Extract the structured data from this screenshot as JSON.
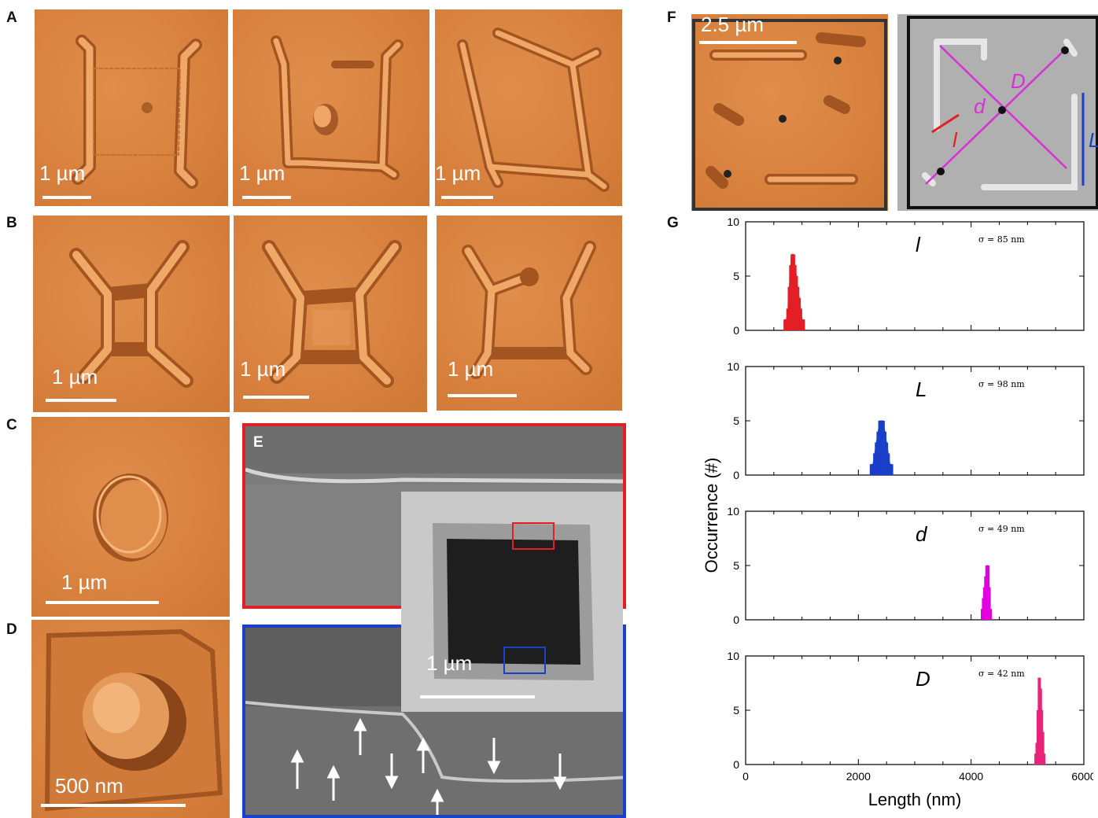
{
  "panels": {
    "a": "A",
    "b": "B",
    "c": "C",
    "d": "D",
    "e": "E",
    "f": "F",
    "g": "G"
  },
  "scalebars": {
    "a1": "1 µm",
    "a2": "1 µm",
    "a3": "1 µm",
    "b1": "1 µm",
    "b2": "1 µm",
    "b3": "1 µm",
    "c": "1 µm",
    "d": "500 nm",
    "e": "1 µm",
    "f": "2.5 µm"
  },
  "f_labels": {
    "d": "d",
    "D": "D",
    "l": "l",
    "L": "L"
  },
  "colors": {
    "afm": "#d9823f",
    "red": "#e31e24",
    "blue": "#1a3fc8",
    "magenta": "#d82fd8",
    "pink": "#e8247a"
  },
  "chart_data": {
    "type": "bar",
    "xlabel": "Length (nm)",
    "ylabel": "Occurrence (#)",
    "xlim": [
      0,
      6000
    ],
    "xticks": [
      "0",
      "2000",
      "4000",
      "6000"
    ],
    "ylim": [
      0,
      10
    ],
    "yticks": [
      "0",
      "5",
      "10"
    ],
    "subplots": [
      {
        "label": "l",
        "sigma": "σ = 85 nm",
        "color": "#e31e24",
        "x": [
          700,
          725,
          750,
          775,
          800,
          825,
          850,
          875,
          900,
          925,
          950,
          975,
          1000,
          1025
        ],
        "y": [
          1,
          1,
          2,
          4,
          6,
          7,
          7,
          6,
          5,
          4,
          3,
          2,
          1,
          1
        ]
      },
      {
        "label": "L",
        "sigma": "σ = 98 nm",
        "color": "#1a3fc8",
        "x": [
          2230,
          2260,
          2290,
          2320,
          2350,
          2380,
          2410,
          2440,
          2470,
          2500,
          2530,
          2560,
          2590
        ],
        "y": [
          1,
          1,
          2,
          3,
          4,
          5,
          5,
          5,
          4,
          3,
          2,
          1,
          1
        ]
      },
      {
        "label": "d",
        "sigma": "σ = 49 nm",
        "color": "#e000e0",
        "x": [
          4200,
          4220,
          4240,
          4260,
          4280,
          4300,
          4320,
          4340
        ],
        "y": [
          1,
          2,
          3,
          4,
          5,
          5,
          3,
          1
        ]
      },
      {
        "label": "D",
        "sigma": "σ = 42 nm",
        "color": "#e8247a",
        "x": [
          5150,
          5170,
          5190,
          5210,
          5230,
          5250,
          5270,
          5290
        ],
        "y": [
          1,
          2,
          5,
          8,
          7,
          5,
          3,
          1
        ]
      }
    ]
  }
}
